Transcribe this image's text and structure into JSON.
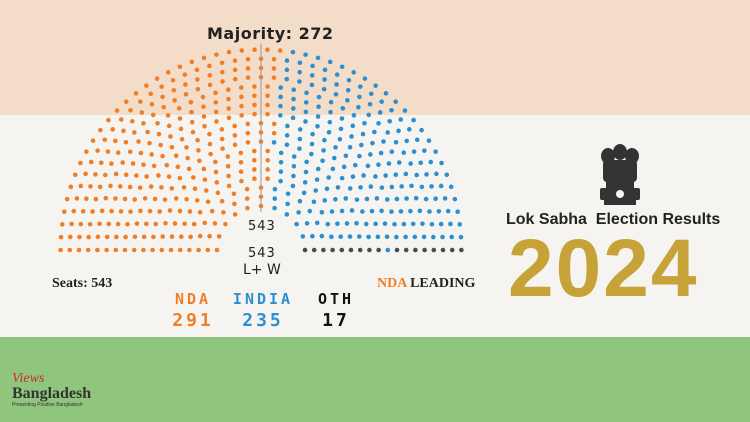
{
  "header": {
    "majority_label": "Majority: 272"
  },
  "chart_data": {
    "type": "parliament",
    "total_seats": 543,
    "series": [
      {
        "name": "NDA",
        "value": 291,
        "color": "#f07e26"
      },
      {
        "name": "INDIA",
        "value": 235,
        "color": "#2b8fd0"
      },
      {
        "name": "OTH",
        "value": 17,
        "color": "#4a4a4a"
      }
    ],
    "empty_color": "#bdbdbd",
    "center_top": "543",
    "center_mid": "543",
    "center_bottom": "L+ W"
  },
  "labels": {
    "seats": "Seats: 543",
    "nda_leading_prefix": "NDA",
    "nda_leading_suffix": " LEADING"
  },
  "parties": [
    {
      "name": "NDA",
      "value": "291",
      "color": "#f07e26"
    },
    {
      "name": "INDIA",
      "value": "235",
      "color": "#2b8fd0"
    },
    {
      "name": "OTH",
      "value": "17",
      "color": "#111111"
    }
  ],
  "title": {
    "heading": "Lok Sabha  Election Results",
    "year": "2024"
  },
  "brand": {
    "line1": "Views",
    "line2": "Bangladesh",
    "tagline": "Presenting Positive Bangladesh"
  },
  "colors": {
    "saffron": "#f3ddc9",
    "white": "#f5f4f0",
    "green": "#8fc57c",
    "gold": "#c6a238"
  }
}
